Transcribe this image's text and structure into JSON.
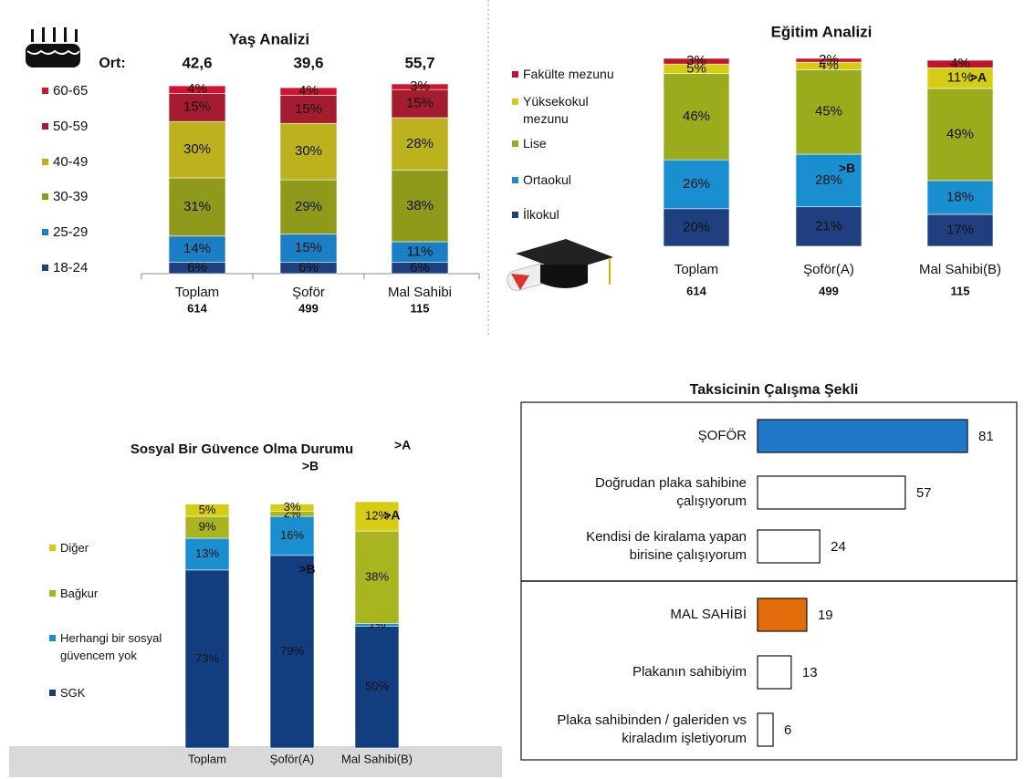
{
  "chart_data": [
    {
      "type": "stacked_bar",
      "title": "Yaş Analizi",
      "categories": [
        "Toplam",
        "Şoför",
        "Mal Sahibi"
      ],
      "sample_sizes": [
        614,
        499,
        115
      ],
      "average_label": "Ort:",
      "averages": [
        42.6,
        39.6,
        55.7
      ],
      "average_labels": [
        "42,6",
        "39,6",
        "55,7"
      ],
      "average_color": "#ff0000",
      "series": [
        {
          "name": "18-24",
          "color": "#1f3f7f",
          "values": [
            6,
            6,
            6
          ],
          "value_labels": [
            "6%",
            "6%",
            "6%"
          ]
        },
        {
          "name": "25-29",
          "color": "#1a7fc4",
          "values": [
            14,
            15,
            11
          ],
          "value_labels": [
            "14%",
            "15%",
            "11%"
          ]
        },
        {
          "name": "30-39",
          "color": "#8f9a1a",
          "values": [
            31,
            29,
            38
          ],
          "value_labels": [
            "31%",
            "29%",
            "38%"
          ]
        },
        {
          "name": "40-49",
          "color": "#bcb21e",
          "values": [
            30,
            30,
            28
          ],
          "value_labels": [
            "30%",
            "30%",
            "28%"
          ]
        },
        {
          "name": "50-59",
          "color": "#a51c30",
          "values": [
            15,
            15,
            15
          ],
          "value_labels": [
            "15%",
            "15%",
            "15%"
          ]
        },
        {
          "name": "60-65",
          "color": "#d0132f",
          "values": [
            4,
            4,
            3
          ],
          "value_labels": [
            "4%",
            "4%",
            "3%"
          ]
        }
      ]
    },
    {
      "type": "stacked_bar",
      "title": "Eğitim Analizi",
      "categories": [
        "Toplam",
        "Şoför(A)",
        "Mal Sahibi(B)"
      ],
      "sample_sizes": [
        614,
        499,
        115
      ],
      "series": [
        {
          "name": "İlkokul",
          "color": "#1f3f7f",
          "values": [
            20,
            21,
            17
          ],
          "value_labels": [
            "20%",
            "21%",
            "17%"
          ]
        },
        {
          "name": "Ortaokul",
          "color": "#1a8fd0",
          "values": [
            26,
            28,
            18
          ],
          "value_labels": [
            "26%",
            "28%",
            "18%"
          ],
          "annotations": [
            null,
            ">B",
            null
          ]
        },
        {
          "name": "Lise",
          "color": "#9aab1c",
          "values": [
            46,
            45,
            49
          ],
          "value_labels": [
            "46%",
            "45%",
            "49%"
          ]
        },
        {
          "name": "Yüksekokul mezunu",
          "color": "#d6cc14",
          "values": [
            5,
            4,
            11
          ],
          "value_labels": [
            "5%",
            "4%",
            "11%"
          ],
          "annotations": [
            null,
            null,
            ">A"
          ]
        },
        {
          "name": "Fakülte mezunu",
          "color": "#c0142e",
          "values": [
            3,
            2,
            4
          ],
          "value_labels": [
            "3%",
            "2%",
            "4%"
          ]
        }
      ]
    },
    {
      "type": "stacked_bar",
      "title": "Sosyal Bir Güvence Olma Durumu",
      "title_annotation": ">A",
      "categories": [
        "Toplam",
        "Şoför(A)",
        "Mal Sahibi(B)"
      ],
      "category_annotations": [
        null,
        ">B",
        null
      ],
      "series": [
        {
          "name": "SGK",
          "color": "#123e80",
          "values": [
            73,
            79,
            50
          ],
          "value_labels": [
            "73%",
            "79%",
            "50%"
          ],
          "annotations": [
            null,
            ">B",
            null
          ]
        },
        {
          "name": "Herhangi bir sosyal güvencem yok",
          "color": "#1a8fd0",
          "values": [
            13,
            16,
            1
          ],
          "value_labels": [
            "13%",
            "16%",
            "1%"
          ]
        },
        {
          "name": "Bağkur",
          "color": "#a8b51e",
          "values": [
            9,
            2,
            38
          ],
          "value_labels": [
            "9%",
            "2%",
            "38%"
          ]
        },
        {
          "name": "Diğer",
          "color": "#d6cc14",
          "values": [
            5,
            3,
            12
          ],
          "value_labels": [
            "5%",
            "3%",
            "12%"
          ],
          "annotations": [
            null,
            null,
            ">A"
          ]
        }
      ]
    },
    {
      "type": "hbar",
      "title": "Taksicinin Çalışma Şekli",
      "categories": [
        "ŞOFÖR",
        "Doğrudan plaka sahibine çalışıyorum",
        "Kendisi de kiralama yapan birisine çalışıyorum",
        "MAL SAHİBİ",
        "Plakanın sahibiyim",
        "Plaka sahibinden / galeriden vs kiraladım işletiyorum"
      ],
      "values": [
        81,
        57,
        24,
        19,
        13,
        6
      ],
      "colors": [
        "#1f78c8",
        "#ffffff",
        "#ffffff",
        "#e36c0a",
        "#ffffff",
        "#ffffff"
      ]
    }
  ]
}
